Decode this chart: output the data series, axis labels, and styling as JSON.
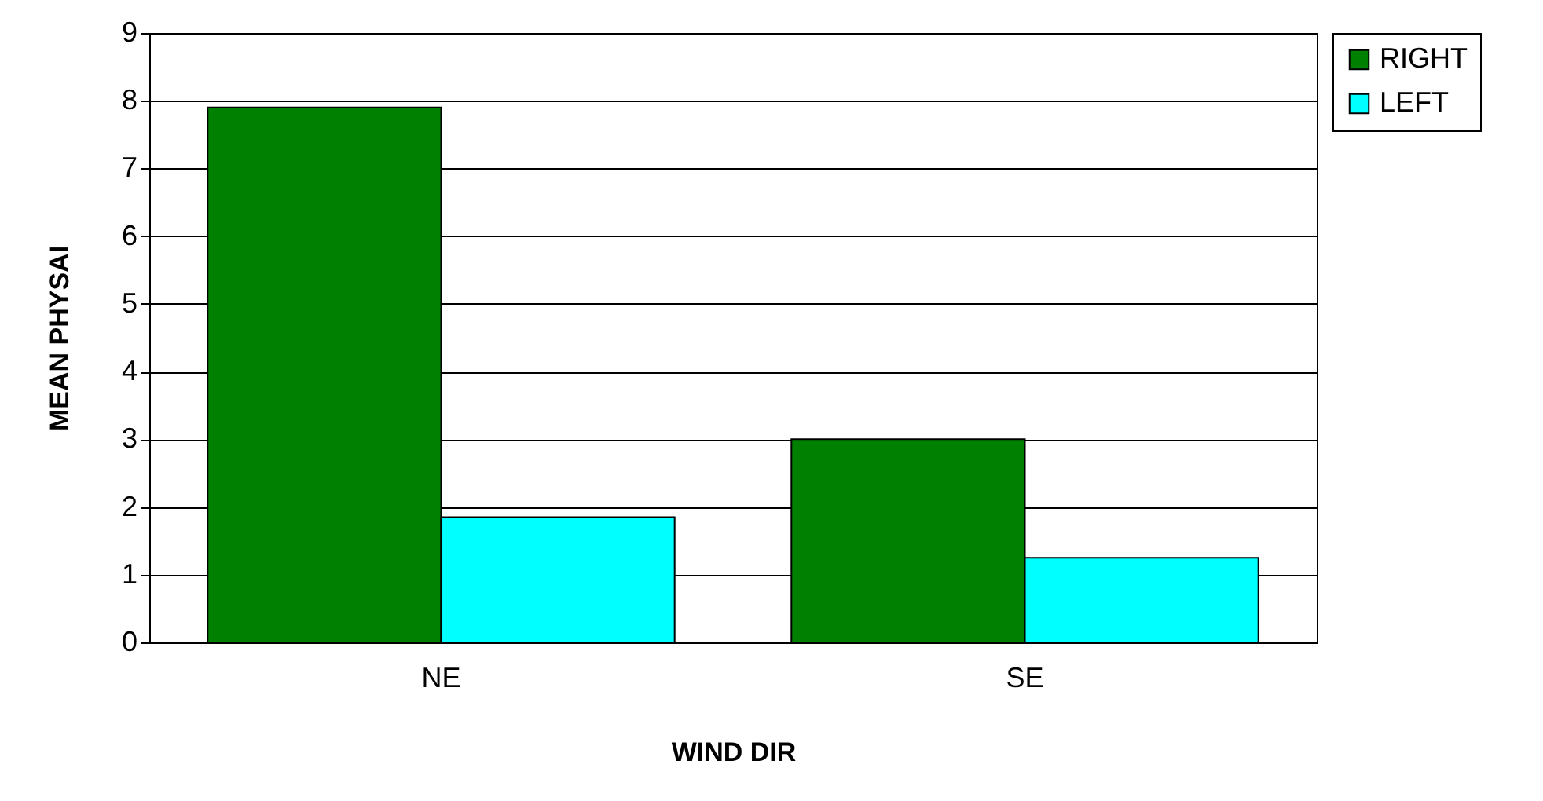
{
  "chart_data": {
    "type": "bar",
    "xlabel": "WIND DIR",
    "ylabel": "MEAN PHYSAI",
    "categories": [
      "NE",
      "SE"
    ],
    "series": [
      {
        "name": "RIGHT",
        "color": "#008000",
        "values": [
          7.9,
          3.0
        ]
      },
      {
        "name": "LEFT",
        "color": "#00ffff",
        "values": [
          1.85,
          1.25
        ]
      }
    ],
    "ylim": [
      0,
      9
    ],
    "yticks": [
      0,
      1,
      2,
      3,
      4,
      5,
      6,
      7,
      8,
      9
    ],
    "grid": "y",
    "legend": "right"
  }
}
